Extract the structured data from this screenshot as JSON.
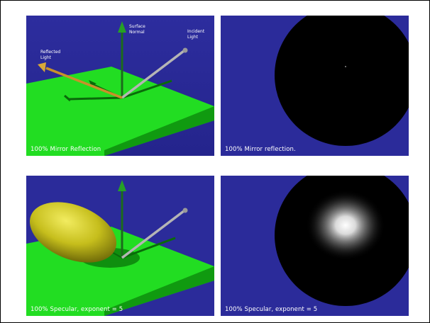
{
  "colors": {
    "background": "#2b2b9a",
    "floor": "#22dd22",
    "floor_edge": "#0c8a0c",
    "sphere": "#000000",
    "normal_arrow": "#1c6b1c",
    "incident_arrow": "#b0b0b0",
    "reflected_arrow": "#c8912a",
    "ellipsoid": "#c8c020"
  },
  "panels": {
    "top_left": {
      "caption": "100% Mirror Reflection",
      "labels": {
        "surface_normal_1": "Surface",
        "surface_normal_2": "Normal",
        "incident_1": "Incident",
        "incident_2": "Light",
        "reflected_1": "Reflected",
        "reflected_2": "Light"
      }
    },
    "top_right": {
      "caption": "100% Mirror reflection."
    },
    "bottom_left": {
      "caption": "100% Specular, exponent = 5"
    },
    "bottom_right": {
      "caption": "100% Specular, exponent = 5"
    }
  }
}
